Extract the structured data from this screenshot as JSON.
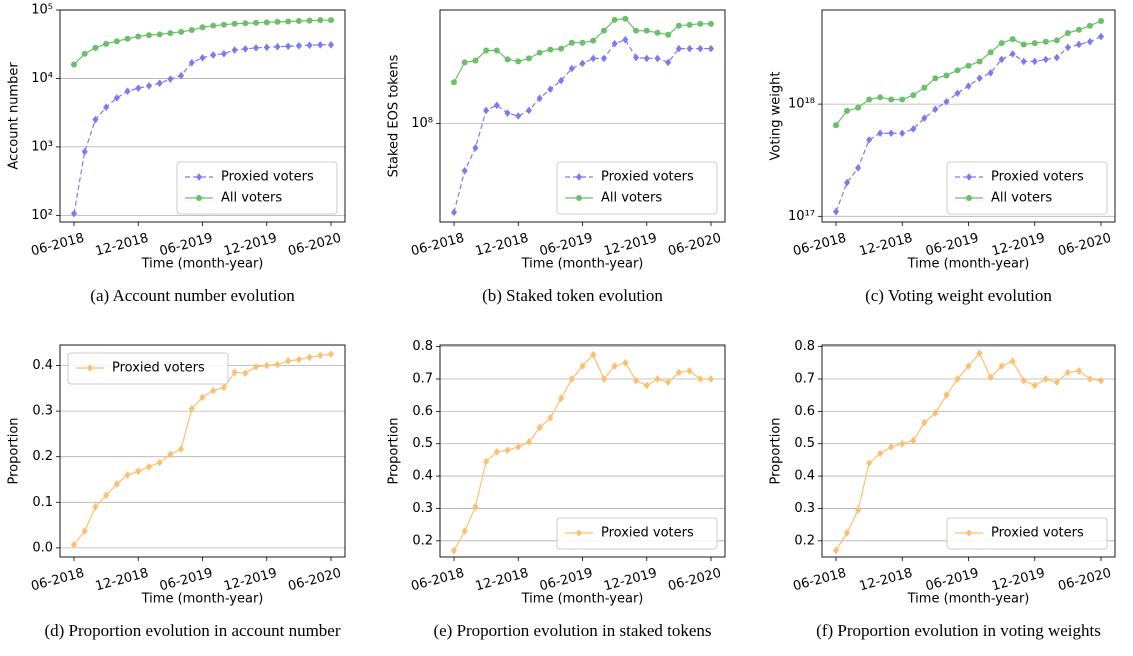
{
  "chart_data": [
    {
      "type": "line",
      "caption": "(a) Account number evolution",
      "xlabel": "Time (month-year)",
      "ylabel": "Account number",
      "categories": [
        "06-2018",
        null,
        null,
        null,
        null,
        null,
        "12-2018",
        null,
        null,
        null,
        null,
        null,
        "06-2019",
        null,
        null,
        null,
        null,
        null,
        "12-2019",
        null,
        null,
        null,
        null,
        null,
        "06-2020"
      ],
      "yscale": "log",
      "ylim": [
        80,
        100000
      ],
      "yticks": [
        {
          "value": 100,
          "label": "10²"
        },
        {
          "value": 1000,
          "label": "10³"
        },
        {
          "value": 10000,
          "label": "10⁴"
        },
        {
          "value": 100000,
          "label": "10⁵"
        }
      ],
      "grid": true,
      "legend": "lower right",
      "series": [
        {
          "name": "Proxied voters",
          "color": "#7b7bf0",
          "marker": "diamond",
          "linestyle": "dashed",
          "values": [
            106,
            850,
            2500,
            3800,
            5200,
            6500,
            7200,
            7800,
            8500,
            9800,
            11000,
            17000,
            20000,
            22000,
            23000,
            26000,
            27000,
            28000,
            28500,
            29000,
            29500,
            30000,
            30500,
            31000,
            31000
          ]
        },
        {
          "name": "All voters",
          "color": "#6abf69",
          "marker": "circle",
          "linestyle": "solid",
          "values": [
            16000,
            23000,
            28000,
            32000,
            35000,
            38000,
            41000,
            43000,
            44000,
            46000,
            48000,
            51000,
            56000,
            59000,
            61000,
            63000,
            64000,
            65000,
            66000,
            67000,
            68000,
            69000,
            70000,
            71000,
            71000
          ]
        }
      ]
    },
    {
      "type": "line",
      "caption": "(b) Staked token evolution",
      "xlabel": "Time (month-year)",
      "ylabel": "Staked EOS tokens",
      "categories": [
        "06-2018",
        null,
        null,
        null,
        null,
        null,
        "12-2018",
        null,
        null,
        null,
        null,
        null,
        "06-2019",
        null,
        null,
        null,
        null,
        null,
        "12-2019",
        null,
        null,
        null,
        null,
        null,
        "06-2020"
      ],
      "yscale": "log",
      "ylim": [
        22000000,
        570000000
      ],
      "yticks": [
        {
          "value": 100000000,
          "label": "10⁸"
        }
      ],
      "grid": true,
      "legend": "lower right",
      "series": [
        {
          "name": "Proxied voters",
          "color": "#7b7bf0",
          "marker": "diamond",
          "linestyle": "dashed",
          "values": [
            25500000,
            48300000,
            68600000,
            122000000,
            132000000,
            117000000,
            112000000,
            122000000,
            147000000,
            169000000,
            193000000,
            232000000,
            251000000,
            271000000,
            271000000,
            340000000,
            361000000,
            275000000,
            271000000,
            271000000,
            255000000,
            315000000,
            315000000,
            315000000,
            315000000
          ]
        },
        {
          "name": "All voters",
          "color": "#6abf69",
          "marker": "circle",
          "linestyle": "solid",
          "values": [
            188000000,
            255000000,
            262000000,
            306000000,
            306000000,
            267000000,
            259000000,
            271000000,
            296000000,
            310000000,
            315000000,
            345000000,
            345000000,
            356000000,
            415000000,
            490000000,
            498000000,
            415000000,
            415000000,
            402000000,
            390000000,
            448000000,
            454000000,
            461000000,
            461000000
          ]
        }
      ]
    },
    {
      "type": "line",
      "caption": "(c) Voting weight evolution",
      "xlabel": "Time (month-year)",
      "ylabel": "Voting weight",
      "categories": [
        "06-2018",
        null,
        null,
        null,
        null,
        null,
        "12-2018",
        null,
        null,
        null,
        null,
        null,
        "06-2019",
        null,
        null,
        null,
        null,
        null,
        "12-2019",
        null,
        null,
        null,
        null,
        null,
        "06-2020"
      ],
      "yscale": "log",
      "ylim": [
        89000000000000000,
        6900000000000000000
      ],
      "yticks": [
        {
          "value": 100000000000000000,
          "label": "10¹⁷"
        },
        {
          "value": 1000000000000000000,
          "label": "10¹⁸"
        }
      ],
      "grid": true,
      "legend": "lower right",
      "series": [
        {
          "name": "Proxied voters",
          "color": "#7b7bf0",
          "marker": "diamond",
          "linestyle": "dashed",
          "values": [
            1.1e+17,
            2e+17,
            2.7e+17,
            4.8e+17,
            5.5e+17,
            5.5e+17,
            5.5e+17,
            6e+17,
            7.5e+17,
            9e+17,
            1.05e+18,
            1.25e+18,
            1.45e+18,
            1.7e+18,
            1.9e+18,
            2.5e+18,
            2.8e+18,
            2.4e+18,
            2.4e+18,
            2.5e+18,
            2.6e+18,
            3.2e+18,
            3.4e+18,
            3.6e+18,
            4e+18
          ]
        },
        {
          "name": "All voters",
          "color": "#6abf69",
          "marker": "circle",
          "linestyle": "solid",
          "values": [
            6.5e+17,
            8.7e+17,
            9.3e+17,
            1.1e+18,
            1.15e+18,
            1.1e+18,
            1.1e+18,
            1.2e+18,
            1.4e+18,
            1.7e+18,
            1.8e+18,
            2e+18,
            2.2e+18,
            2.4e+18,
            2.9e+18,
            3.5e+18,
            3.8e+18,
            3.4e+18,
            3.5e+18,
            3.6e+18,
            3.7e+18,
            4.3e+18,
            4.6e+18,
            5e+18,
            5.5e+18
          ]
        }
      ]
    },
    {
      "type": "line",
      "caption": "(d) Proportion evolution in account number",
      "xlabel": "Time (month-year)",
      "ylabel": "Proportion",
      "categories": [
        "06-2018",
        null,
        null,
        null,
        null,
        null,
        "12-2018",
        null,
        null,
        null,
        null,
        null,
        "06-2019",
        null,
        null,
        null,
        null,
        null,
        "12-2019",
        null,
        null,
        null,
        null,
        null,
        "06-2020"
      ],
      "ylim": [
        -0.02,
        0.445
      ],
      "yticks": [
        {
          "value": 0,
          "label": "0.0"
        },
        0.1,
        0.2,
        0.3,
        0.4
      ],
      "grid": true,
      "legend": "upper left",
      "series": [
        {
          "name": "Proxied voters",
          "color": "#fdbf6f",
          "marker": "diamond",
          "linestyle": "solid",
          "values": [
            0.007,
            0.037,
            0.09,
            0.115,
            0.14,
            0.16,
            0.168,
            0.178,
            0.187,
            0.205,
            0.217,
            0.305,
            0.33,
            0.345,
            0.352,
            0.385,
            0.383,
            0.397,
            0.4,
            0.402,
            0.41,
            0.413,
            0.418,
            0.422,
            0.425
          ]
        }
      ]
    },
    {
      "type": "line",
      "caption": "(e) Proportion evolution in staked tokens",
      "xlabel": "Time (month-year)",
      "ylabel": "Proportion",
      "categories": [
        "06-2018",
        null,
        null,
        null,
        null,
        null,
        "12-2018",
        null,
        null,
        null,
        null,
        null,
        "06-2019",
        null,
        null,
        null,
        null,
        null,
        "12-2019",
        null,
        null,
        null,
        null,
        null,
        "06-2020"
      ],
      "ylim": [
        0.15,
        0.805
      ],
      "yticks": [
        0.2,
        0.3,
        0.4,
        0.5,
        0.6,
        0.7,
        0.8
      ],
      "grid": true,
      "legend": "lower right",
      "series": [
        {
          "name": "Proxied voters",
          "color": "#fdbf6f",
          "marker": "diamond",
          "linestyle": "solid",
          "values": [
            0.17,
            0.23,
            0.305,
            0.445,
            0.475,
            0.48,
            0.49,
            0.505,
            0.55,
            0.58,
            0.64,
            0.7,
            0.74,
            0.775,
            0.7,
            0.74,
            0.75,
            0.695,
            0.68,
            0.7,
            0.69,
            0.72,
            0.725,
            0.7,
            0.7
          ]
        }
      ]
    },
    {
      "type": "line",
      "caption": "(f) Proportion evolution in voting weights",
      "xlabel": "Time (month-year)",
      "ylabel": "Proportion",
      "categories": [
        "06-2018",
        null,
        null,
        null,
        null,
        null,
        "12-2018",
        null,
        null,
        null,
        null,
        null,
        "06-2019",
        null,
        null,
        null,
        null,
        null,
        "12-2019",
        null,
        null,
        null,
        null,
        null,
        "06-2020"
      ],
      "ylim": [
        0.15,
        0.805
      ],
      "yticks": [
        0.2,
        0.3,
        0.4,
        0.5,
        0.6,
        0.7,
        0.8
      ],
      "grid": true,
      "legend": "lower right",
      "series": [
        {
          "name": "Proxied voters",
          "color": "#fdbf6f",
          "marker": "diamond",
          "linestyle": "solid",
          "values": [
            0.17,
            0.225,
            0.295,
            0.44,
            0.47,
            0.49,
            0.5,
            0.51,
            0.565,
            0.595,
            0.65,
            0.7,
            0.74,
            0.78,
            0.705,
            0.74,
            0.755,
            0.695,
            0.68,
            0.7,
            0.69,
            0.72,
            0.725,
            0.7,
            0.695
          ]
        }
      ]
    }
  ]
}
